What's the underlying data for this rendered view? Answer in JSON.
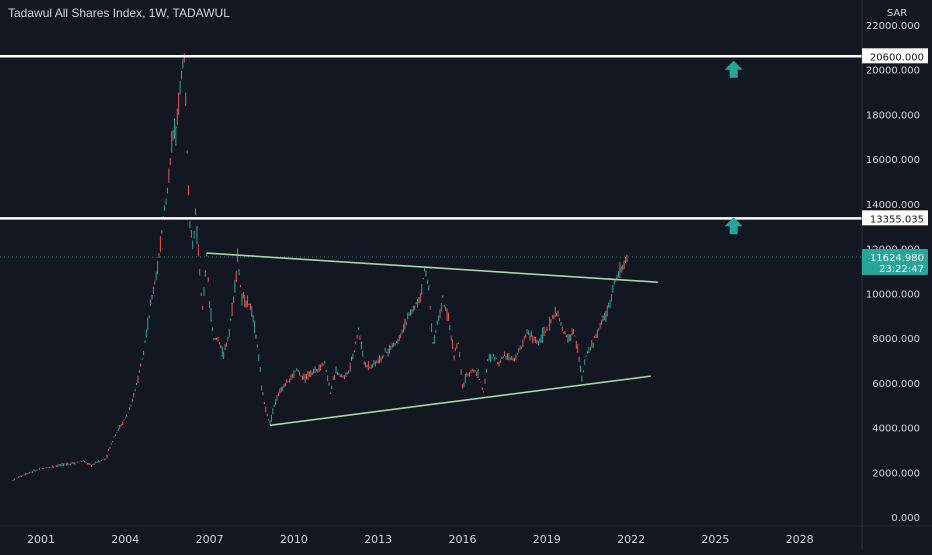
{
  "header": {
    "title": "Tadawul All Shares Index, 1W, TADAWUL"
  },
  "colors": {
    "background": "#131722",
    "up": "#26a69a",
    "down": "#ef5350",
    "trendline": "#a5d6a7",
    "level": "#ffffff",
    "axis_text": "#d1d4dc",
    "grid": "#1e222d"
  },
  "chart_data": {
    "type": "candlestick",
    "title": "Tadawul All Shares Index, 1W, TADAWUL",
    "currency": "SAR",
    "y_range": [
      0,
      22000
    ],
    "x_range": [
      1999.95,
      2030.0
    ],
    "y_ticks": [
      "22000.000",
      "20000.000",
      "18000.000",
      "16000.000",
      "14000.000",
      "12000.000",
      "10000.000",
      "8000.000",
      "6000.000",
      "4000.000",
      "2000.000",
      "0.000"
    ],
    "x_ticks": [
      "2001",
      "2004",
      "2007",
      "2010",
      "2013",
      "2016",
      "2019",
      "2022",
      "2025",
      "2028"
    ],
    "price_path": [
      [
        2000.0,
        1650
      ],
      [
        2000.5,
        1950
      ],
      [
        2001.0,
        2150
      ],
      [
        2001.5,
        2280
      ],
      [
        2002.0,
        2380
      ],
      [
        2002.5,
        2500
      ],
      [
        2002.8,
        2300
      ],
      [
        2003.0,
        2450
      ],
      [
        2003.3,
        2600
      ],
      [
        2003.6,
        3600
      ],
      [
        2003.9,
        4200
      ],
      [
        2004.2,
        4900
      ],
      [
        2004.5,
        6500
      ],
      [
        2004.8,
        8600
      ],
      [
        2005.0,
        10200
      ],
      [
        2005.2,
        11500
      ],
      [
        2005.35,
        13500
      ],
      [
        2005.5,
        14500
      ],
      [
        2005.65,
        16800
      ],
      [
        2005.8,
        17500
      ],
      [
        2005.9,
        18600
      ],
      [
        2006.0,
        19800
      ],
      [
        2006.1,
        20600
      ],
      [
        2006.2,
        16500
      ],
      [
        2006.3,
        13000
      ],
      [
        2006.4,
        12200
      ],
      [
        2006.5,
        13400
      ],
      [
        2006.6,
        11800
      ],
      [
        2006.75,
        9200
      ],
      [
        2006.9,
        11700
      ],
      [
        2007.0,
        9500
      ],
      [
        2007.15,
        7900
      ],
      [
        2007.3,
        8000
      ],
      [
        2007.5,
        7200
      ],
      [
        2007.7,
        8300
      ],
      [
        2007.85,
        9800
      ],
      [
        2008.0,
        11600
      ],
      [
        2008.15,
        9700
      ],
      [
        2008.35,
        9700
      ],
      [
        2008.5,
        9200
      ],
      [
        2008.7,
        7700
      ],
      [
        2008.85,
        5800
      ],
      [
        2009.0,
        4800
      ],
      [
        2009.15,
        4200
      ],
      [
        2009.3,
        5000
      ],
      [
        2009.5,
        5600
      ],
      [
        2009.7,
        6000
      ],
      [
        2009.9,
        6200
      ],
      [
        2010.1,
        6600
      ],
      [
        2010.3,
        6200
      ],
      [
        2010.5,
        6300
      ],
      [
        2010.7,
        6500
      ],
      [
        2010.9,
        6700
      ],
      [
        2011.1,
        6900
      ],
      [
        2011.3,
        5600
      ],
      [
        2011.5,
        6500
      ],
      [
        2011.7,
        6300
      ],
      [
        2011.9,
        6400
      ],
      [
        2012.1,
        7200
      ],
      [
        2012.3,
        8400
      ],
      [
        2012.5,
        6900
      ],
      [
        2012.7,
        6700
      ],
      [
        2012.9,
        6900
      ],
      [
        2013.1,
        7100
      ],
      [
        2013.4,
        7500
      ],
      [
        2013.7,
        7900
      ],
      [
        2013.9,
        8500
      ],
      [
        2014.1,
        9000
      ],
      [
        2014.3,
        9400
      ],
      [
        2014.5,
        9800
      ],
      [
        2014.65,
        11100
      ],
      [
        2014.8,
        10200
      ],
      [
        2014.95,
        7800
      ],
      [
        2015.1,
        8600
      ],
      [
        2015.3,
        9700
      ],
      [
        2015.5,
        8800
      ],
      [
        2015.7,
        7300
      ],
      [
        2015.85,
        7800
      ],
      [
        2016.0,
        5800
      ],
      [
        2016.15,
        6300
      ],
      [
        2016.35,
        6600
      ],
      [
        2016.55,
        6400
      ],
      [
        2016.75,
        5600
      ],
      [
        2016.9,
        7000
      ],
      [
        2017.1,
        7200
      ],
      [
        2017.3,
        6900
      ],
      [
        2017.5,
        7300
      ],
      [
        2017.7,
        7100
      ],
      [
        2017.9,
        7200
      ],
      [
        2018.1,
        7600
      ],
      [
        2018.3,
        8300
      ],
      [
        2018.5,
        8000
      ],
      [
        2018.7,
        7800
      ],
      [
        2018.9,
        8200
      ],
      [
        2019.1,
        8600
      ],
      [
        2019.3,
        9200
      ],
      [
        2019.45,
        8800
      ],
      [
        2019.6,
        8200
      ],
      [
        2019.8,
        8000
      ],
      [
        2019.95,
        8300
      ],
      [
        2020.1,
        7500
      ],
      [
        2020.25,
        6200
      ],
      [
        2020.4,
        7200
      ],
      [
        2020.6,
        7700
      ],
      [
        2020.8,
        8200
      ],
      [
        2020.95,
        8700
      ],
      [
        2021.15,
        9200
      ],
      [
        2021.35,
        10200
      ],
      [
        2021.55,
        10900
      ],
      [
        2021.75,
        11300
      ],
      [
        2021.9,
        11625
      ]
    ],
    "lines": {
      "resistance_level_1": 20600.0,
      "resistance_level_2": 13355.035,
      "upper_trendline": [
        [
          2006.9,
          11800
        ],
        [
          2022.95,
          10500
        ]
      ],
      "lower_trendline": [
        [
          2009.15,
          4100
        ],
        [
          2022.7,
          6300
        ]
      ]
    },
    "annotations": [
      {
        "type": "arrow-up",
        "x": 2025.65,
        "y": 20000
      },
      {
        "type": "arrow-up",
        "x": 2025.65,
        "y": 13000
      }
    ],
    "last_price": "11624.980",
    "countdown": "23:22:47",
    "level_labels": [
      "20600.000",
      "13355.035"
    ]
  }
}
